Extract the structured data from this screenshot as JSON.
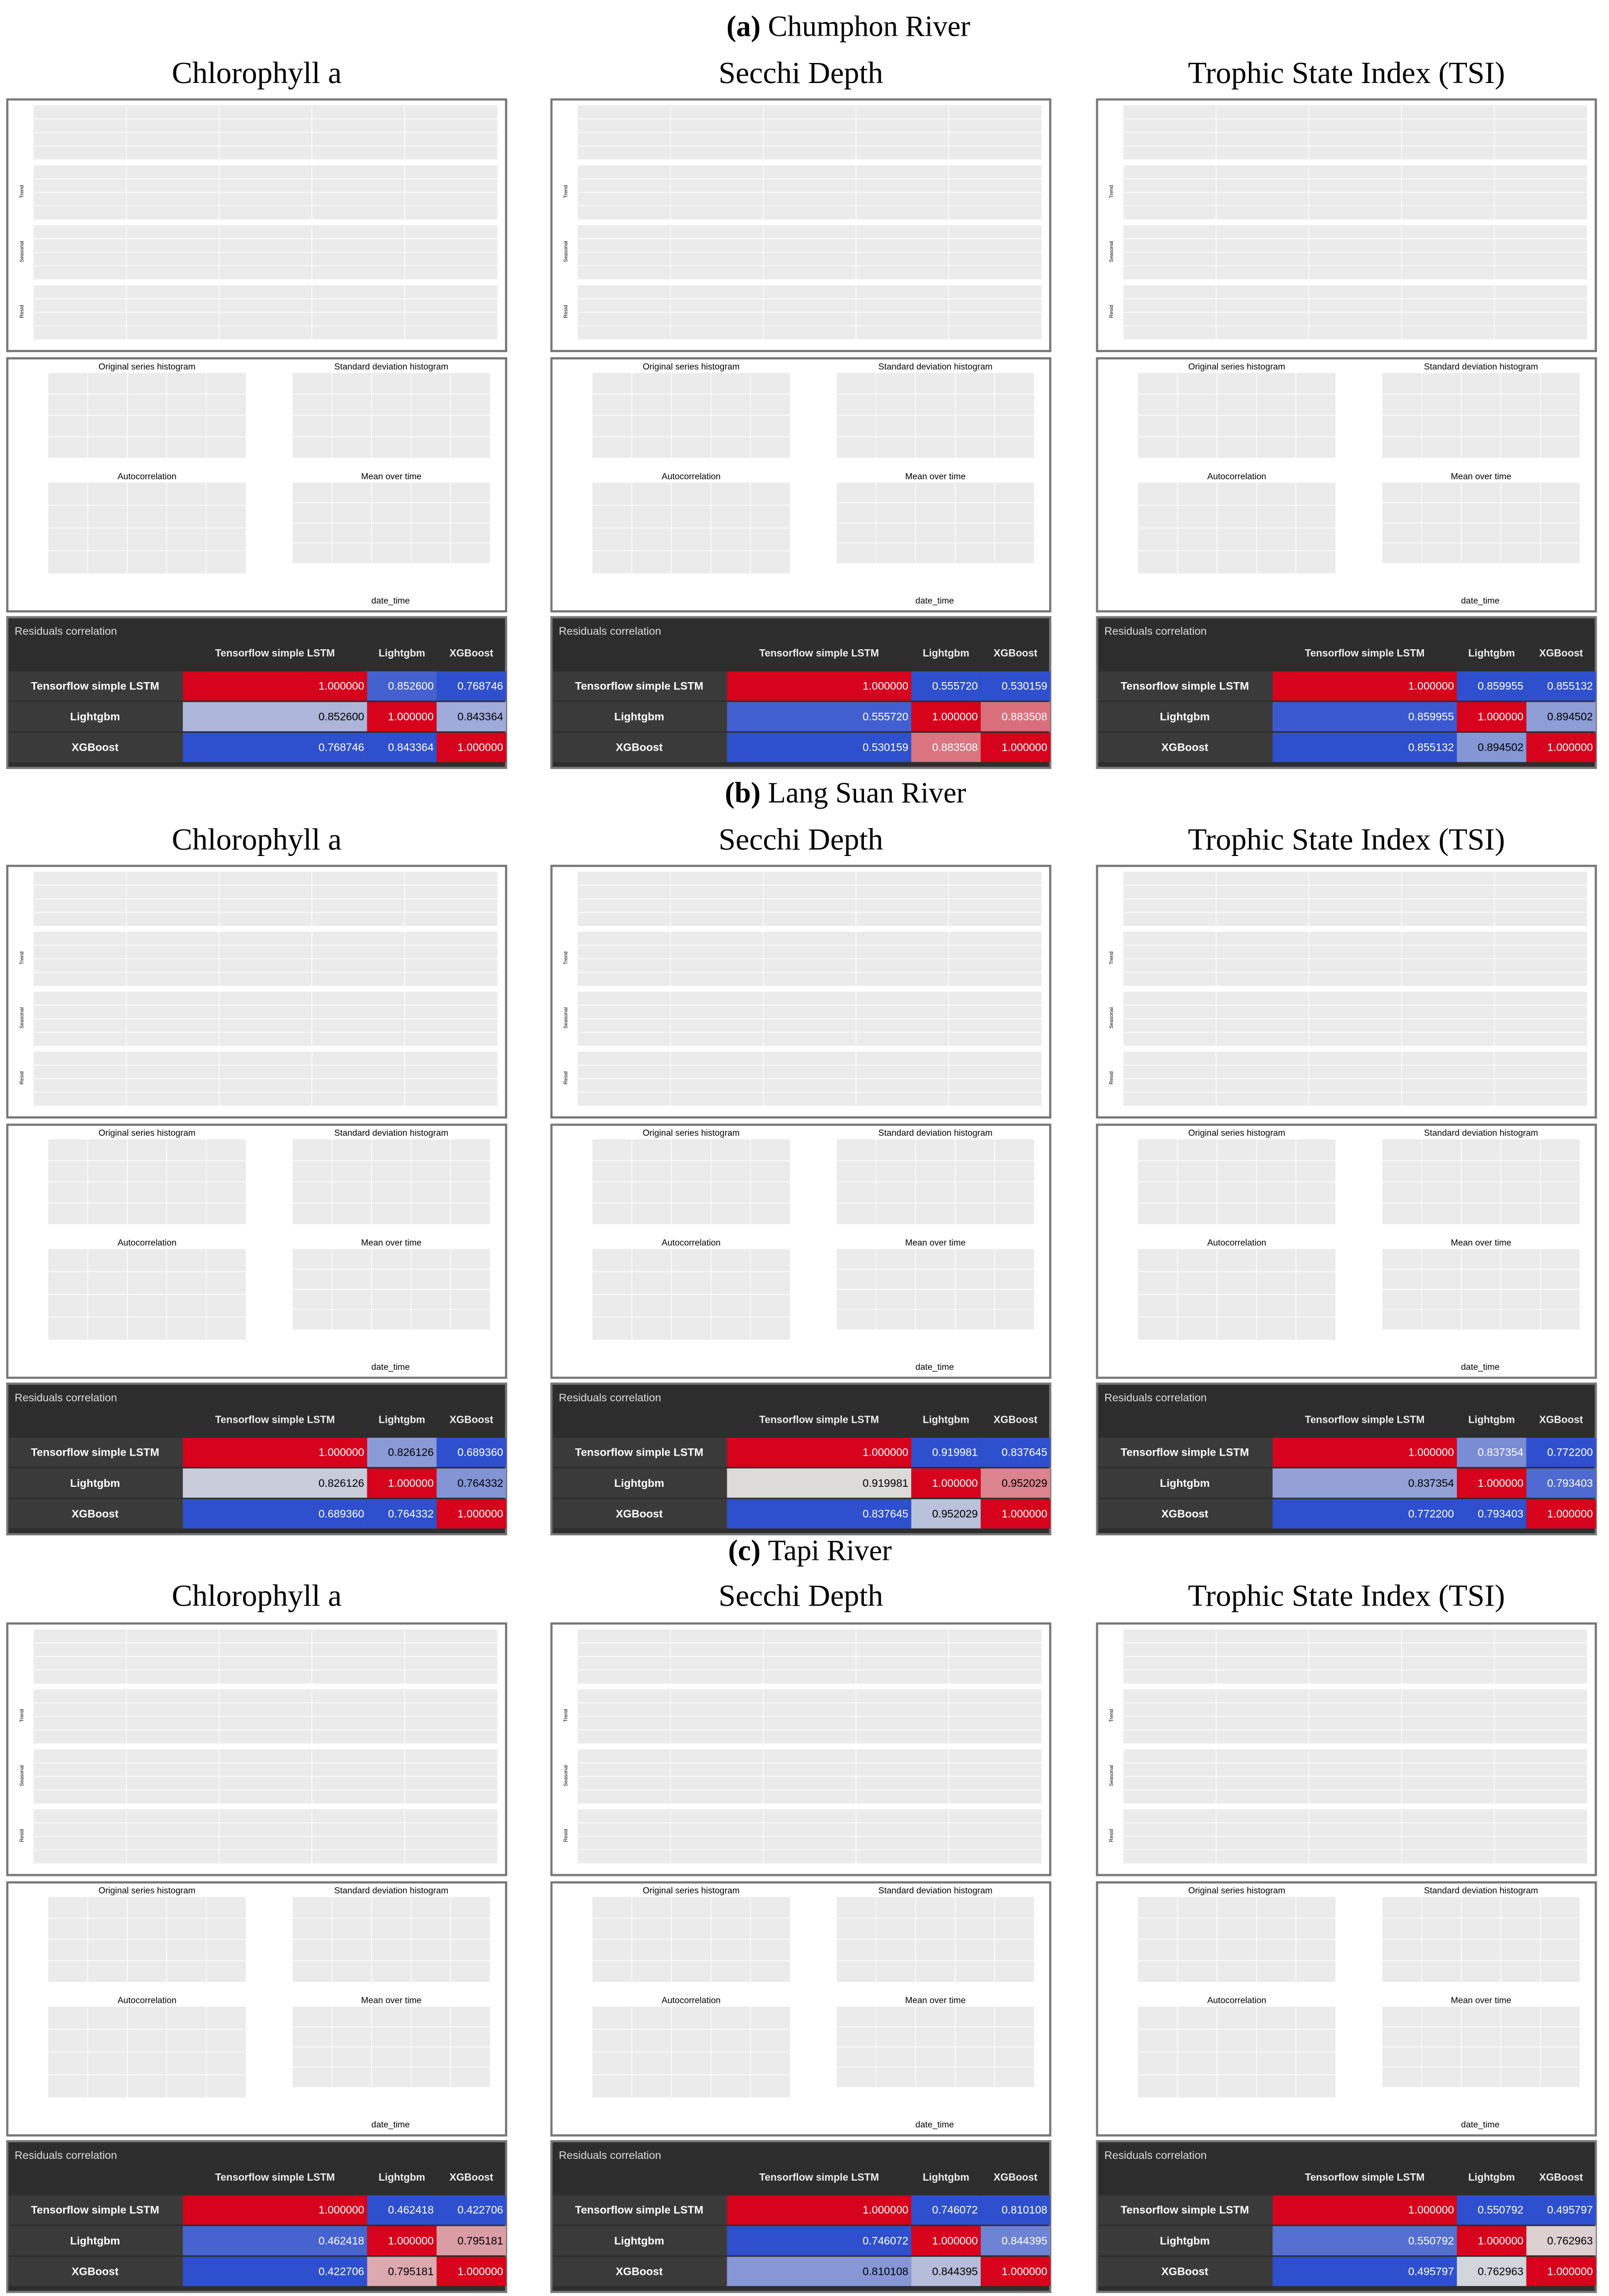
{
  "stat_titles": [
    "Original series histogram",
    "Standard deviation histogram",
    "Autocorrelation",
    "Mean over time"
  ],
  "mean_xlabel": "date_time",
  "decomposition_ylabels": [
    "Trend",
    "Seasonal",
    "Resid"
  ],
  "table_title": "Residuals correlation",
  "models": [
    "Tensorflow simple LSTM",
    "Lightgbm",
    "XGBoost"
  ],
  "sections": [
    {
      "label": "(a)",
      "title": "Chumphon River",
      "panels": [
        {
          "variable": "Chlorophyll a",
          "correlation": [
            [
              1,
              0.8526,
              0.768746
            ],
            [
              0.8526,
              1,
              0.843364
            ],
            [
              0.768746,
              0.843364,
              1
            ]
          ],
          "value_labels": [
            [
              "1.000000",
              "0.852600",
              "0.768746"
            ],
            [
              "0.852600",
              "1.000000",
              "0.843364"
            ],
            [
              "0.768746",
              "0.843364",
              "1.000000"
            ]
          ]
        },
        {
          "variable": "Secchi Depth",
          "correlation": [
            [
              1,
              0.55572,
              0.530159
            ],
            [
              0.55572,
              1,
              0.883508
            ],
            [
              0.530159,
              0.883508,
              1
            ]
          ],
          "value_labels": [
            [
              "1.000000",
              "0.555720",
              "0.530159"
            ],
            [
              "0.555720",
              "1.000000",
              "0.883508"
            ],
            [
              "0.530159",
              "0.883508",
              "1.000000"
            ]
          ]
        },
        {
          "variable": "Trophic State Index (TSI)",
          "correlation": [
            [
              1,
              0.859955,
              0.855132
            ],
            [
              0.859955,
              1,
              0.894502
            ],
            [
              0.855132,
              0.894502,
              1
            ]
          ],
          "value_labels": [
            [
              "1.000000",
              "0.859955",
              "0.855132"
            ],
            [
              "0.859955",
              "1.000000",
              "0.894502"
            ],
            [
              "0.855132",
              "0.894502",
              "1.000000"
            ]
          ]
        }
      ]
    },
    {
      "label": "(b)",
      "title": "Lang Suan River",
      "panels": [
        {
          "variable": "Chlorophyll a",
          "correlation": [
            [
              1,
              0.826126,
              0.68936
            ],
            [
              0.826126,
              1,
              0.764332
            ],
            [
              0.68936,
              0.764332,
              1
            ]
          ],
          "value_labels": [
            [
              "1.000000",
              "0.826126",
              "0.689360"
            ],
            [
              "0.826126",
              "1.000000",
              "0.764332"
            ],
            [
              "0.689360",
              "0.764332",
              "1.000000"
            ]
          ]
        },
        {
          "variable": "Secchi Depth",
          "correlation": [
            [
              1,
              0.919981,
              0.837645
            ],
            [
              0.919981,
              1,
              0.952029
            ],
            [
              0.837645,
              0.952029,
              1
            ]
          ],
          "value_labels": [
            [
              "1.000000",
              "0.919981",
              "0.837645"
            ],
            [
              "0.919981",
              "1.000000",
              "0.952029"
            ],
            [
              "0.837645",
              "0.952029",
              "1.000000"
            ]
          ]
        },
        {
          "variable": "Trophic State Index (TSI)",
          "correlation": [
            [
              1,
              0.837354,
              0.7722
            ],
            [
              0.837354,
              1,
              0.793403
            ],
            [
              0.7722,
              0.793403,
              1
            ]
          ],
          "value_labels": [
            [
              "1.000000",
              "0.837354",
              "0.772200"
            ],
            [
              "0.837354",
              "1.000000",
              "0.793403"
            ],
            [
              "0.772200",
              "0.793403",
              "1.000000"
            ]
          ]
        }
      ]
    },
    {
      "label": "(c)",
      "title": "Tapi River",
      "panels": [
        {
          "variable": "Chlorophyll a",
          "correlation": [
            [
              1,
              0.462418,
              0.422706
            ],
            [
              0.462418,
              1,
              0.795181
            ],
            [
              0.422706,
              0.795181,
              1
            ]
          ],
          "value_labels": [
            [
              "1.000000",
              "0.462418",
              "0.422706"
            ],
            [
              "0.462418",
              "1.000000",
              "0.795181"
            ],
            [
              "0.422706",
              "0.795181",
              "1.000000"
            ]
          ]
        },
        {
          "variable": "Secchi Depth",
          "correlation": [
            [
              1,
              0.746072,
              0.810108
            ],
            [
              0.746072,
              1,
              0.844395
            ],
            [
              0.810108,
              0.844395,
              1
            ]
          ],
          "value_labels": [
            [
              "1.000000",
              "0.746072",
              "0.810108"
            ],
            [
              "0.746072",
              "1.000000",
              "0.844395"
            ],
            [
              "0.810108",
              "0.844395",
              "1.000000"
            ]
          ]
        },
        {
          "variable": "Trophic State Index (TSI)",
          "correlation": [
            [
              1,
              0.550792,
              0.495797
            ],
            [
              0.550792,
              1,
              0.762963
            ],
            [
              0.495797,
              0.762963,
              1
            ]
          ],
          "value_labels": [
            [
              "1.000000",
              "0.550792",
              "0.495797"
            ],
            [
              "0.550792",
              "1.000000",
              "0.762963"
            ],
            [
              "0.495797",
              "0.762963",
              "1.000000"
            ]
          ]
        }
      ]
    }
  ]
}
